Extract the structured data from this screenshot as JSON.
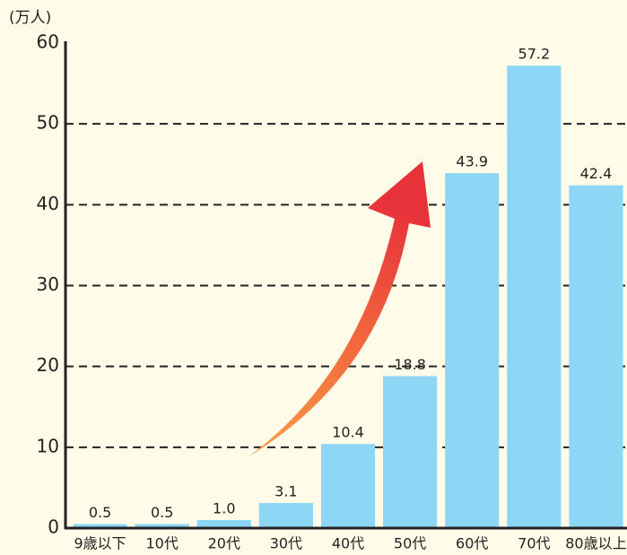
{
  "chart_data": {
    "type": "bar",
    "y_label": "(万人)",
    "categories": [
      "9歳以下",
      "10代",
      "20代",
      "30代",
      "40代",
      "50代",
      "60代",
      "70代",
      "80歳以上"
    ],
    "values": [
      0.5,
      0.5,
      1.0,
      3.1,
      10.4,
      18.8,
      43.9,
      57.2,
      42.4
    ],
    "value_labels": [
      "0.5",
      "0.5",
      "1.0",
      "3.1",
      "10.4",
      "18.8",
      "43.9",
      "57.2",
      "42.4"
    ],
    "color": "#8dd6f5",
    "ylim": [
      0,
      60
    ],
    "yticks": [
      0,
      10,
      20,
      30,
      40,
      50,
      60
    ],
    "grid": true
  }
}
